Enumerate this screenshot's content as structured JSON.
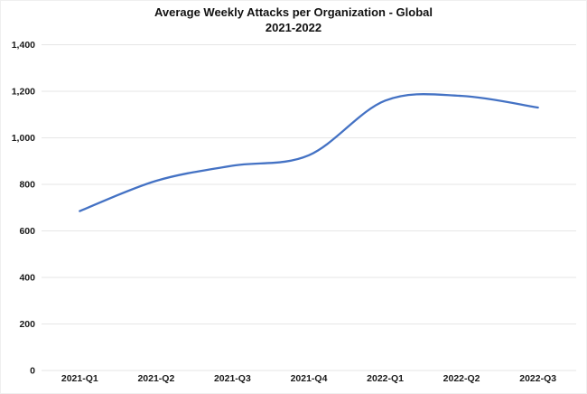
{
  "header": {
    "title_line1": "Average Weekly Attacks per Organization - Global",
    "title_line2": "2021-2022"
  },
  "chart_data": {
    "type": "line",
    "title": "Average Weekly Attacks per Organization - Global 2021-2022",
    "categories": [
      "2021-Q1",
      "2021-Q2",
      "2021-Q3",
      "2021-Q4",
      "2022-Q1",
      "2022-Q2",
      "2022-Q3"
    ],
    "values": [
      685,
      815,
      880,
      925,
      1160,
      1180,
      1130
    ],
    "xlabel": "",
    "ylabel": "",
    "ylim": [
      0,
      1400
    ],
    "y_ticks": [
      0,
      200,
      400,
      600,
      800,
      1000,
      1200,
      1400
    ],
    "y_tick_labels": [
      "0",
      "200",
      "400",
      "600",
      "800",
      "1,000",
      "1,200",
      "1,400"
    ],
    "grid": "horizontal",
    "legend": "none",
    "smooth": true,
    "line_color": "#4472C4",
    "gridline_color": "#E6E6E6",
    "text_color": "#1a1a1a",
    "background_color": "#FFFFFF"
  }
}
